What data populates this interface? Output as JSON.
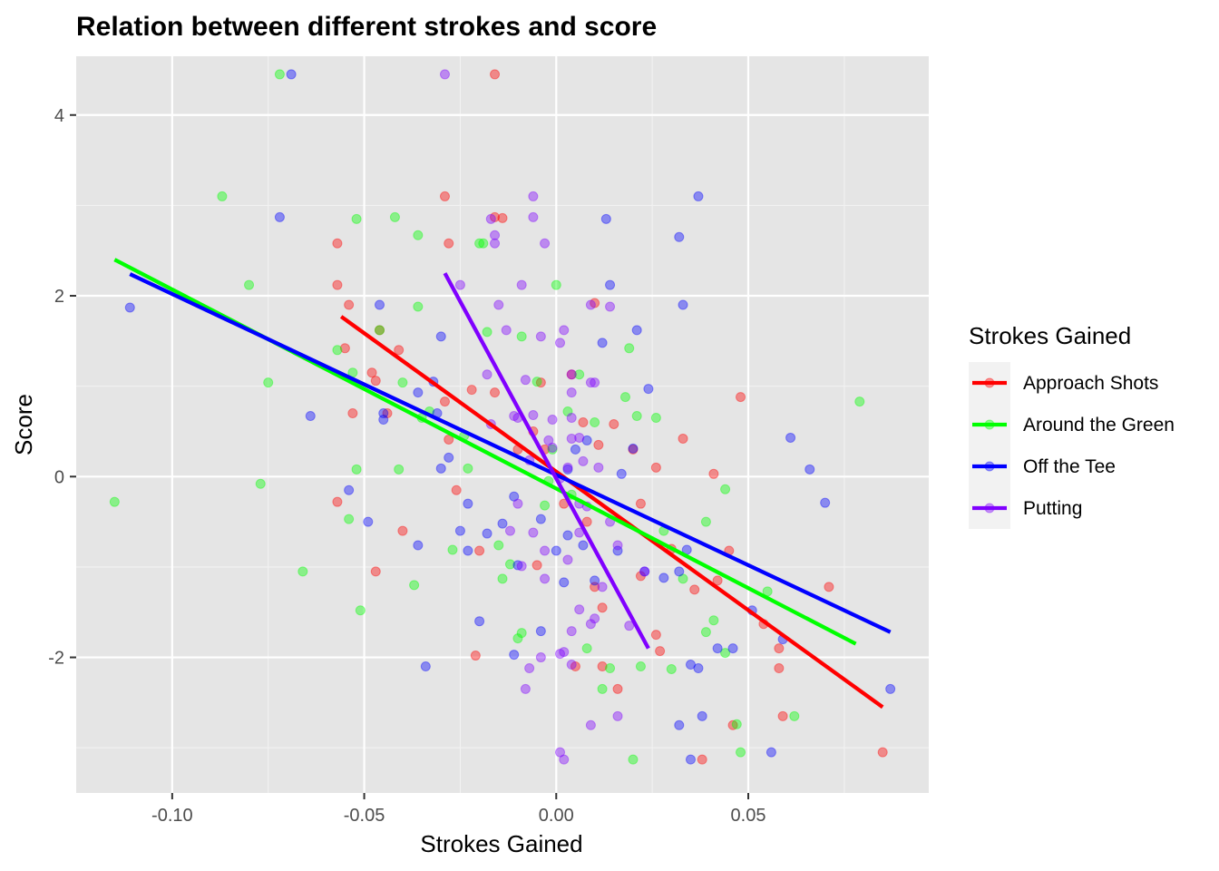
{
  "chart_data": {
    "type": "scatter",
    "title": "Relation between different strokes and score",
    "xlabel": "Strokes Gained",
    "ylabel": "Score",
    "xlim": [
      -0.125,
      0.097
    ],
    "ylim": [
      -3.5,
      4.65
    ],
    "x_ticks": [
      -0.1,
      -0.05,
      0.0,
      0.05
    ],
    "x_tick_labels": [
      "-0.10",
      "-0.05",
      "0.00",
      "0.05"
    ],
    "y_ticks": [
      -2,
      0,
      2,
      4
    ],
    "y_tick_labels": [
      "-2",
      "0",
      "2",
      "4"
    ],
    "grid": true,
    "legend": {
      "title": "Strokes Gained",
      "position": "right"
    },
    "series": [
      {
        "name": "Approach Shots",
        "color": "#ff0000",
        "trend": [
          [
            -0.056,
            1.77
          ],
          [
            0.085,
            -2.55
          ]
        ],
        "points": [
          [
            -0.016,
            4.45
          ],
          [
            -0.029,
            3.1
          ],
          [
            -0.057,
            2.58
          ],
          [
            -0.028,
            2.58
          ],
          [
            -0.014,
            2.86
          ],
          [
            -0.016,
            2.87
          ],
          [
            -0.057,
            2.12
          ],
          [
            -0.054,
            1.9
          ],
          [
            -0.046,
            1.62
          ],
          [
            -0.055,
            1.42
          ],
          [
            -0.041,
            1.4
          ],
          [
            -0.048,
            1.15
          ],
          [
            -0.047,
            1.06
          ],
          [
            -0.029,
            0.83
          ],
          [
            -0.022,
            0.96
          ],
          [
            -0.016,
            0.93
          ],
          [
            -0.028,
            0.41
          ],
          [
            -0.053,
            0.7
          ],
          [
            -0.044,
            0.7
          ],
          [
            -0.057,
            -0.28
          ],
          [
            -0.04,
            -0.6
          ],
          [
            -0.047,
            -1.05
          ],
          [
            -0.026,
            -0.15
          ],
          [
            -0.02,
            -0.82
          ],
          [
            -0.021,
            -1.98
          ],
          [
            -0.005,
            -0.98
          ],
          [
            0.002,
            -0.3
          ],
          [
            0.007,
            0.6
          ],
          [
            0.011,
            0.35
          ],
          [
            0.015,
            0.58
          ],
          [
            0.02,
            0.3
          ],
          [
            0.022,
            -0.3
          ],
          [
            0.026,
            0.1
          ],
          [
            0.03,
            -0.8
          ],
          [
            0.033,
            0.42
          ],
          [
            0.036,
            -1.25
          ],
          [
            0.042,
            -1.15
          ],
          [
            0.041,
            0.03
          ],
          [
            0.045,
            -0.82
          ],
          [
            0.046,
            -2.75
          ],
          [
            0.048,
            0.88
          ],
          [
            0.054,
            -1.63
          ],
          [
            0.058,
            -2.12
          ],
          [
            0.059,
            -2.65
          ],
          [
            0.058,
            -1.9
          ],
          [
            0.071,
            -1.22
          ],
          [
            0.085,
            -3.05
          ],
          [
            0.038,
            -3.13
          ],
          [
            0.016,
            -2.35
          ],
          [
            0.01,
            -1.22
          ],
          [
            0.012,
            -1.45
          ],
          [
            0.004,
            1.13
          ],
          [
            -0.004,
            1.04
          ],
          [
            0.01,
            1.92
          ],
          [
            -0.003,
            0.3
          ],
          [
            0.008,
            -0.5
          ],
          [
            0.022,
            -1.1
          ],
          [
            0.026,
            -1.75
          ],
          [
            0.027,
            -1.93
          ],
          [
            -0.01,
            0.3
          ],
          [
            -0.006,
            0.5
          ],
          [
            0.005,
            -2.1
          ],
          [
            0.012,
            -2.1
          ]
        ]
      },
      {
        "name": "Around the Green",
        "color": "#00ff00",
        "trend": [
          [
            -0.115,
            2.4
          ],
          [
            0.078,
            -1.85
          ]
        ],
        "points": [
          [
            -0.072,
            4.45
          ],
          [
            -0.087,
            3.1
          ],
          [
            -0.052,
            2.85
          ],
          [
            -0.042,
            2.87
          ],
          [
            -0.036,
            2.67
          ],
          [
            -0.02,
            2.58
          ],
          [
            -0.019,
            2.58
          ],
          [
            -0.08,
            2.12
          ],
          [
            -0.036,
            1.88
          ],
          [
            -0.046,
            1.62
          ],
          [
            -0.057,
            1.4
          ],
          [
            -0.075,
            1.04
          ],
          [
            -0.053,
            1.15
          ],
          [
            -0.04,
            1.04
          ],
          [
            -0.035,
            0.65
          ],
          [
            -0.033,
            0.72
          ],
          [
            -0.052,
            0.08
          ],
          [
            -0.041,
            0.08
          ],
          [
            -0.077,
            -0.08
          ],
          [
            -0.115,
            -0.28
          ],
          [
            -0.054,
            -0.47
          ],
          [
            -0.066,
            -1.05
          ],
          [
            -0.051,
            -1.48
          ],
          [
            -0.037,
            -1.2
          ],
          [
            -0.027,
            -0.81
          ],
          [
            -0.015,
            -0.76
          ],
          [
            -0.014,
            -1.13
          ],
          [
            -0.012,
            -0.97
          ],
          [
            -0.01,
            -1.79
          ],
          [
            -0.009,
            -1.73
          ],
          [
            0.0,
            2.12
          ],
          [
            0.01,
            0.6
          ],
          [
            0.018,
            0.88
          ],
          [
            0.019,
            1.42
          ],
          [
            0.021,
            0.67
          ],
          [
            0.026,
            0.65
          ],
          [
            0.028,
            -0.6
          ],
          [
            0.03,
            -2.13
          ],
          [
            0.033,
            -1.13
          ],
          [
            0.039,
            -0.5
          ],
          [
            0.039,
            -1.72
          ],
          [
            0.041,
            -1.59
          ],
          [
            0.044,
            -0.14
          ],
          [
            0.044,
            -1.95
          ],
          [
            0.047,
            -2.74
          ],
          [
            0.048,
            -3.05
          ],
          [
            0.055,
            -1.27
          ],
          [
            0.062,
            -2.65
          ],
          [
            0.079,
            0.83
          ],
          [
            0.02,
            -3.13
          ],
          [
            0.022,
            -2.1
          ],
          [
            0.012,
            -2.35
          ],
          [
            0.006,
            1.13
          ],
          [
            0.003,
            0.72
          ],
          [
            -0.001,
            0.3
          ],
          [
            0.004,
            -0.2
          ],
          [
            -0.002,
            -0.05
          ],
          [
            0.008,
            -1.9
          ],
          [
            0.014,
            -2.12
          ],
          [
            -0.018,
            1.6
          ],
          [
            -0.009,
            1.55
          ],
          [
            -0.005,
            1.05
          ],
          [
            -0.024,
            0.45
          ],
          [
            -0.023,
            0.09
          ],
          [
            -0.003,
            -0.32
          ]
        ]
      },
      {
        "name": "Off the Tee",
        "color": "#0000ff",
        "trend": [
          [
            -0.111,
            2.24
          ],
          [
            0.087,
            -1.72
          ]
        ],
        "points": [
          [
            -0.069,
            4.45
          ],
          [
            -0.072,
            2.87
          ],
          [
            -0.111,
            1.87
          ],
          [
            -0.046,
            1.9
          ],
          [
            -0.03,
            1.55
          ],
          [
            -0.036,
            0.93
          ],
          [
            -0.045,
            0.63
          ],
          [
            -0.045,
            0.7
          ],
          [
            -0.064,
            0.67
          ],
          [
            -0.054,
            -0.15
          ],
          [
            -0.049,
            -0.5
          ],
          [
            -0.036,
            -0.76
          ],
          [
            -0.034,
            -2.1
          ],
          [
            -0.028,
            0.21
          ],
          [
            -0.023,
            -0.3
          ],
          [
            -0.025,
            -0.6
          ],
          [
            -0.023,
            -0.82
          ],
          [
            -0.02,
            -1.6
          ],
          [
            -0.01,
            -0.98
          ],
          [
            -0.004,
            -0.47
          ],
          [
            -0.004,
            -1.71
          ],
          [
            0.003,
            -0.65
          ],
          [
            0.005,
            0.3
          ],
          [
            0.008,
            0.4
          ],
          [
            0.012,
            1.48
          ],
          [
            0.013,
            2.85
          ],
          [
            0.014,
            2.12
          ],
          [
            0.021,
            1.62
          ],
          [
            0.024,
            0.97
          ],
          [
            0.02,
            0.31
          ],
          [
            0.017,
            0.03
          ],
          [
            0.023,
            -1.05
          ],
          [
            0.028,
            -1.12
          ],
          [
            0.032,
            -1.05
          ],
          [
            0.032,
            2.65
          ],
          [
            0.033,
            1.9
          ],
          [
            0.037,
            3.1
          ],
          [
            0.034,
            -0.81
          ],
          [
            0.035,
            -2.08
          ],
          [
            0.037,
            -2.12
          ],
          [
            0.035,
            -3.13
          ],
          [
            0.038,
            -2.65
          ],
          [
            0.032,
            -2.75
          ],
          [
            0.042,
            -1.9
          ],
          [
            0.046,
            -1.9
          ],
          [
            0.051,
            -1.48
          ],
          [
            0.056,
            -3.05
          ],
          [
            0.059,
            -1.8
          ],
          [
            0.061,
            0.43
          ],
          [
            0.066,
            0.08
          ],
          [
            0.07,
            -0.29
          ],
          [
            0.087,
            -2.35
          ],
          [
            0.003,
            0.08
          ],
          [
            0.01,
            -1.15
          ],
          [
            0.016,
            -0.82
          ],
          [
            -0.011,
            -0.22
          ],
          [
            -0.014,
            -0.52
          ],
          [
            -0.018,
            -0.63
          ],
          [
            -0.031,
            0.7
          ],
          [
            -0.03,
            0.09
          ],
          [
            -0.032,
            1.05
          ],
          [
            0.0,
            -0.82
          ],
          [
            0.002,
            -1.17
          ],
          [
            0.007,
            -0.76
          ],
          [
            -0.011,
            -1.97
          ]
        ]
      },
      {
        "name": "Putting",
        "color": "#8000ff",
        "trend": [
          [
            -0.029,
            2.25
          ],
          [
            0.024,
            -1.9
          ]
        ],
        "points": [
          [
            -0.029,
            4.45
          ],
          [
            -0.006,
            3.1
          ],
          [
            -0.006,
            2.87
          ],
          [
            -0.003,
            2.58
          ],
          [
            -0.017,
            2.85
          ],
          [
            -0.016,
            2.58
          ],
          [
            -0.016,
            2.67
          ],
          [
            -0.025,
            2.12
          ],
          [
            -0.009,
            2.12
          ],
          [
            -0.015,
            1.9
          ],
          [
            0.009,
            1.9
          ],
          [
            0.014,
            1.88
          ],
          [
            -0.004,
            1.55
          ],
          [
            0.002,
            1.62
          ],
          [
            0.001,
            1.48
          ],
          [
            -0.013,
            1.62
          ],
          [
            -0.008,
            1.07
          ],
          [
            0.004,
            1.13
          ],
          [
            -0.018,
            1.13
          ],
          [
            0.009,
            1.04
          ],
          [
            0.01,
            1.04
          ],
          [
            0.004,
            0.93
          ],
          [
            -0.011,
            0.67
          ],
          [
            -0.01,
            0.65
          ],
          [
            -0.006,
            0.68
          ],
          [
            -0.001,
            0.63
          ],
          [
            0.004,
            0.42
          ],
          [
            0.006,
            0.43
          ],
          [
            0.004,
            0.65
          ],
          [
            -0.017,
            0.58
          ],
          [
            -0.002,
            0.4
          ],
          [
            -0.001,
            0.32
          ],
          [
            -0.007,
            0.18
          ],
          [
            0.007,
            0.17
          ],
          [
            0.011,
            0.1
          ],
          [
            0.003,
            0.1
          ],
          [
            0.001,
            -0.02
          ],
          [
            -0.01,
            -0.3
          ],
          [
            0.006,
            -0.3
          ],
          [
            0.008,
            -0.33
          ],
          [
            -0.006,
            -0.62
          ],
          [
            0.006,
            -0.62
          ],
          [
            0.003,
            -0.92
          ],
          [
            -0.003,
            -1.13
          ],
          [
            0.006,
            -1.47
          ],
          [
            0.009,
            -1.63
          ],
          [
            0.01,
            -1.57
          ],
          [
            0.004,
            -1.71
          ],
          [
            0.001,
            -1.96
          ],
          [
            0.002,
            -1.94
          ],
          [
            0.004,
            -2.08
          ],
          [
            -0.004,
            -2.0
          ],
          [
            -0.007,
            -2.12
          ],
          [
            -0.008,
            -2.35
          ],
          [
            0.009,
            -2.75
          ],
          [
            0.016,
            -2.65
          ],
          [
            0.001,
            -3.05
          ],
          [
            0.002,
            -3.13
          ],
          [
            0.019,
            -1.65
          ],
          [
            0.016,
            -0.76
          ],
          [
            -0.003,
            -0.82
          ],
          [
            0.023,
            -1.05
          ],
          [
            -0.012,
            -0.6
          ],
          [
            -0.009,
            -0.99
          ],
          [
            0.014,
            -0.5
          ],
          [
            0.012,
            -1.22
          ]
        ]
      }
    ]
  }
}
